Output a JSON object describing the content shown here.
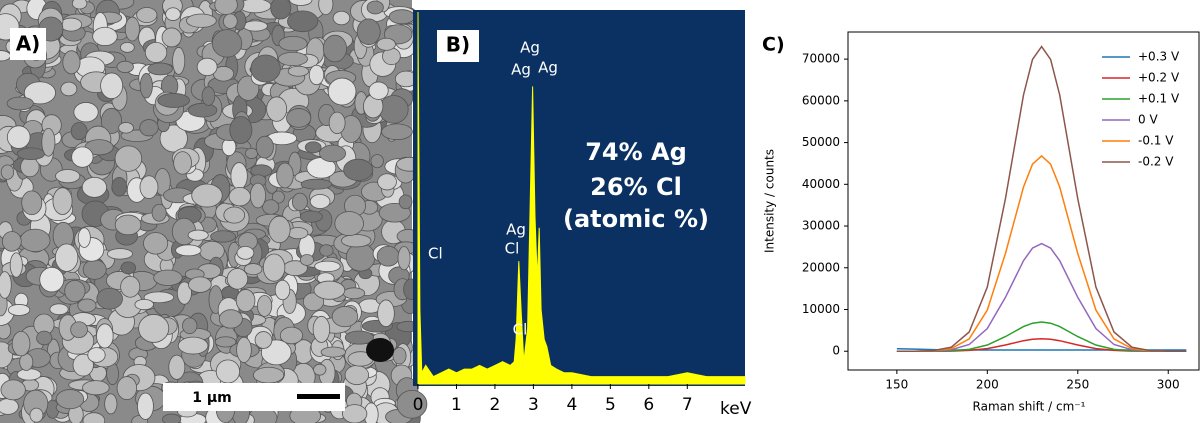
{
  "panel_a": {
    "label": "A)",
    "scale_bar": "1 µm"
  },
  "chart_data": [
    {
      "type": "area",
      "label": "B)",
      "color": "#ffff00",
      "background": "#0a3161",
      "x": [
        0,
        0.05,
        0.1,
        0.2,
        0.4,
        0.6,
        0.8,
        1.0,
        1.2,
        1.4,
        1.6,
        1.8,
        2.0,
        2.2,
        2.4,
        2.5,
        2.55,
        2.62,
        2.68,
        2.75,
        2.85,
        2.92,
        2.98,
        3.04,
        3.1,
        3.15,
        3.2,
        3.28,
        3.35,
        3.45,
        3.6,
        3.8,
        4.0,
        4.5,
        5.0,
        5.5,
        6.0,
        6.5,
        7.0,
        7.5,
        8.0,
        8.5
      ],
      "values": [
        100,
        20,
        3,
        5,
        2,
        3,
        4,
        3,
        4,
        4,
        5,
        4,
        5,
        6,
        5,
        6,
        12,
        33,
        20,
        6,
        15,
        50,
        80,
        45,
        28,
        42,
        20,
        12,
        10,
        5,
        4,
        3,
        3,
        2,
        2,
        2,
        2,
        2,
        3,
        2,
        2,
        2
      ],
      "xlim": [
        0,
        8.5
      ],
      "ylim": [
        0,
        100
      ],
      "xticks": [
        0,
        1,
        2,
        3,
        4,
        5,
        6,
        7
      ],
      "xlabel": "keV",
      "annotations": [
        "Ag",
        "Ag",
        "Ag",
        "Cl",
        "Ag",
        "Cl",
        "Cl",
        "74% Ag",
        "26% Cl",
        "(atomic %)"
      ]
    },
    {
      "type": "line",
      "label": "C)",
      "xlabel": "Raman shift / cm⁻¹",
      "ylabel": "Intensity / counts",
      "x": [
        150,
        160,
        170,
        180,
        190,
        200,
        210,
        220,
        225,
        230,
        235,
        240,
        250,
        260,
        270,
        280,
        290,
        300,
        310
      ],
      "series": [
        {
          "name": "+0.3 V",
          "color": "#1f77b4",
          "values": [
            600,
            500,
            400,
            300,
            300,
            300,
            300,
            300,
            300,
            300,
            300,
            300,
            300,
            300,
            300,
            300,
            300,
            300,
            300
          ]
        },
        {
          "name": "+0.2 V",
          "color": "#d62728",
          "values": [
            0,
            0,
            5,
            40,
            190,
            630,
            1500,
            2520,
            2870,
            3000,
            2870,
            2520,
            1500,
            630,
            190,
            40,
            5,
            0,
            0
          ]
        },
        {
          "name": "+0.1 V",
          "color": "#2ca02c",
          "values": [
            0,
            0,
            15,
            90,
            440,
            1480,
            3500,
            5890,
            6710,
            7000,
            6710,
            5890,
            3500,
            1480,
            440,
            90,
            15,
            0,
            0
          ]
        },
        {
          "name": "0 V",
          "color": "#9467bd",
          "values": [
            0,
            0,
            50,
            340,
            1620,
            5440,
            12900,
            21700,
            24720,
            25800,
            24720,
            21700,
            12900,
            5440,
            1620,
            340,
            50,
            0,
            0
          ]
        },
        {
          "name": "-0.1 V",
          "color": "#ff7f0e",
          "values": [
            0,
            0,
            90,
            610,
            2950,
            9870,
            23400,
            39360,
            44830,
            46800,
            44830,
            39360,
            23400,
            9870,
            2950,
            610,
            90,
            0,
            0
          ]
        },
        {
          "name": "-0.2 V",
          "color": "#8c564b",
          "values": [
            0,
            0,
            150,
            950,
            4600,
            15400,
            36500,
            61400,
            69900,
            73000,
            69900,
            61400,
            36500,
            15400,
            4600,
            950,
            150,
            0,
            0
          ]
        }
      ],
      "xlim": [
        123,
        317
      ],
      "ylim": [
        -4500,
        76500
      ],
      "xticks": [
        150,
        200,
        250,
        300
      ],
      "yticks": [
        0,
        10000,
        20000,
        30000,
        40000,
        50000,
        60000,
        70000
      ],
      "legend": "upper right"
    }
  ]
}
